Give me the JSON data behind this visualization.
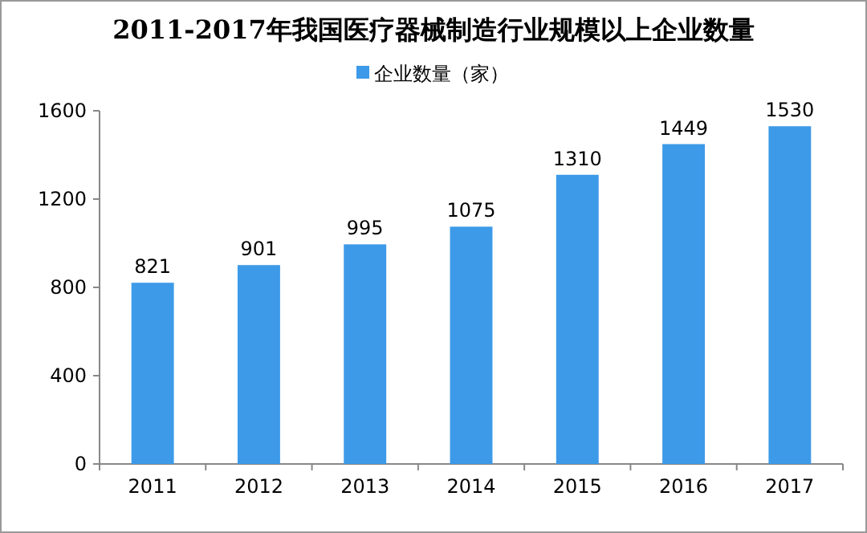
{
  "chart_data": {
    "type": "bar",
    "title": "2011-2017年我国医疗器械制造行业规模以上企业数量",
    "categories": [
      "2011",
      "2012",
      "2013",
      "2014",
      "2015",
      "2016",
      "2017"
    ],
    "series": [
      {
        "name": "企业数量（家）",
        "color": "#3d9ae8",
        "values": [
          821,
          901,
          995,
          1075,
          1310,
          1449,
          1530
        ]
      }
    ],
    "ylim": [
      0,
      1600
    ],
    "yticks": [
      0,
      400,
      800,
      1200,
      1600
    ],
    "data_labels": true,
    "legend": "top",
    "grid": false
  }
}
